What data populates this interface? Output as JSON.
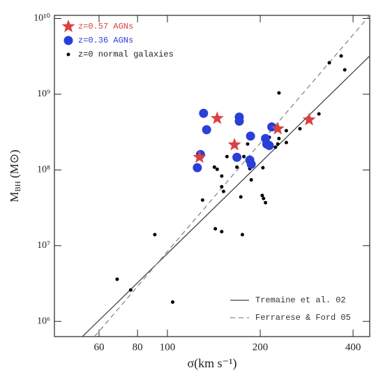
{
  "chart_data": {
    "type": "scatter",
    "xlabel": "σ(km s⁻¹)",
    "ylabel": {
      "main": "M",
      "sub": "BH",
      "unit": " (M⊙)"
    },
    "log_x": true,
    "log_y": true,
    "xlim": [
      43,
      453
    ],
    "ylim": [
      630000,
      11000000000
    ],
    "xticks": [
      60,
      80,
      100,
      200,
      400
    ],
    "yticks": [
      {
        "value": 1000000,
        "label": "10⁶"
      },
      {
        "value": 10000000,
        "label": "10⁷"
      },
      {
        "value": 100000000,
        "label": "10⁸"
      },
      {
        "value": 1000000000,
        "label": "10⁹"
      },
      {
        "value": 10000000000,
        "label": "10¹⁰"
      }
    ],
    "series": [
      {
        "name": "z=0.57 AGNs",
        "color": "#d9433f",
        "marker": "star",
        "x": [
          127,
          145,
          165,
          228,
          288
        ],
        "values": [
          147000000,
          480000000,
          215000000,
          350000000,
          460000000
        ]
      },
      {
        "name": "z=0.36 AGNs",
        "color": "#2a3fd6",
        "marker": "circle",
        "x": [
          125,
          128,
          131,
          134,
          171,
          171,
          168,
          186,
          185,
          187,
          208,
          210,
          218,
          214
        ],
        "values": [
          107000000,
          160000000,
          560000000,
          340000000,
          500000000,
          440000000,
          147000000,
          280000000,
          135000000,
          119000000,
          260000000,
          220000000,
          370000000,
          210000000
        ]
      },
      {
        "name": "z=0 normal galaxies",
        "color": "#000000",
        "marker": "dot",
        "x": [
          68.7,
          76,
          91,
          104,
          130,
          142,
          145,
          150,
          152,
          143,
          150,
          175,
          173,
          156,
          187,
          185,
          203,
          204,
          205,
          208,
          224,
          228,
          230,
          243,
          269,
          310,
          335,
          366,
          376,
          214,
          243,
          230,
          182,
          168,
          150,
          177
        ],
        "values": [
          3600000,
          2600000,
          14000000,
          1800000,
          40000000,
          109000000,
          102000000,
          83000000,
          52000000,
          16700000,
          15300000,
          14000000,
          44000000,
          150000000,
          74000000,
          104000000,
          46000000,
          107000000,
          42000000,
          37000000,
          200000000,
          220000000,
          1040000000,
          330000000,
          350000000,
          550000000,
          2600000000,
          3200000000,
          2100000000,
          270000000,
          230000000,
          260000000,
          220000000,
          109000000,
          60000000,
          150000000
        ]
      }
    ],
    "fits": [
      {
        "name": "Tremaine et al. 02",
        "color": "#444444",
        "dashed": false,
        "x": [
          53,
          453
        ],
        "values": [
          630000,
          3200000000
        ]
      },
      {
        "name": "Ferrarese & Ford 05",
        "color": "#888888",
        "dashed": true,
        "x": [
          58,
          453
        ],
        "values": [
          630000,
          11000000000
        ]
      }
    ]
  }
}
